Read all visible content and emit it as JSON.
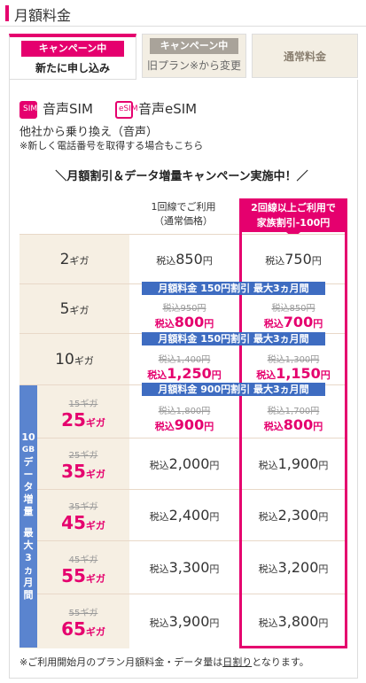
{
  "header": {
    "title": "月額料金"
  },
  "tabs": [
    {
      "badge": "キャンペーン中",
      "sub": "新たに申し込み"
    },
    {
      "badge": "キャンペーン中",
      "sub": "旧プラン※から変更"
    },
    {
      "sub": "通常料金"
    }
  ],
  "sims": [
    {
      "label": "音声SIM",
      "icon": "SIM"
    },
    {
      "label": "音声eSIM",
      "icon": "eSIM"
    }
  ],
  "notes": {
    "line1": "他社から乗り換え（音声）",
    "line2": "※新しく電話番号を取得する場合もこちら"
  },
  "campaign_title": "＼月額割引＆データ増量キャンペーン実施中！／",
  "columns": {
    "normal_line1": "1回線でご利用",
    "normal_line2": "（通常価格）",
    "family_line1": "2回線以上ご利用で",
    "family_line2": "家族割引-100円"
  },
  "rows": [
    {
      "gb": "2",
      "unit": "ギガ",
      "normal": "850",
      "family": "750"
    },
    {
      "gb": "5",
      "unit": "ギガ",
      "normal_old": "税込950円",
      "normal": "800",
      "family_old": "税込850円",
      "family": "700"
    },
    {
      "gb": "10",
      "unit": "ギガ",
      "normal_old": "税込1,400円",
      "normal": "1,250",
      "family_old": "税込1,300円",
      "family": "1,150"
    },
    {
      "old_gb": "15ギガ",
      "gb": "25",
      "unit": "ギガ",
      "normal_old": "税込1,800円",
      "normal": "900",
      "family_old": "税込1,700円",
      "family": "800"
    },
    {
      "old_gb": "25ギガ",
      "gb": "35",
      "unit": "ギガ",
      "normal": "2,000",
      "family": "1,900"
    },
    {
      "old_gb": "35ギガ",
      "gb": "45",
      "unit": "ギガ",
      "normal": "2,400",
      "family": "2,300"
    },
    {
      "old_gb": "45ギガ",
      "gb": "55",
      "unit": "ギガ",
      "normal": "3,300",
      "family": "3,200"
    },
    {
      "old_gb": "55ギガ",
      "gb": "65",
      "unit": "ギガ",
      "normal": "3,900",
      "family": "3,800"
    }
  ],
  "banners": [
    "月額料金 150円割引 最大3ヵ月間",
    "月額料金 150円割引 最大3ヵ月間",
    "月額料金 900円割引 最大3ヵ月間"
  ],
  "sidebar": "10GBデータ増量 最大3ヵ月間",
  "labels": {
    "zei": "税込",
    "yen": "円"
  },
  "footer": {
    "pre": "※ご利用開始月のプラン月額料金・データ量は",
    "link": "日割り",
    "post": "となります。"
  },
  "colors": {
    "accent": "#e5006e",
    "banner": "#3e6cc1",
    "beige": "#f6efe3"
  }
}
